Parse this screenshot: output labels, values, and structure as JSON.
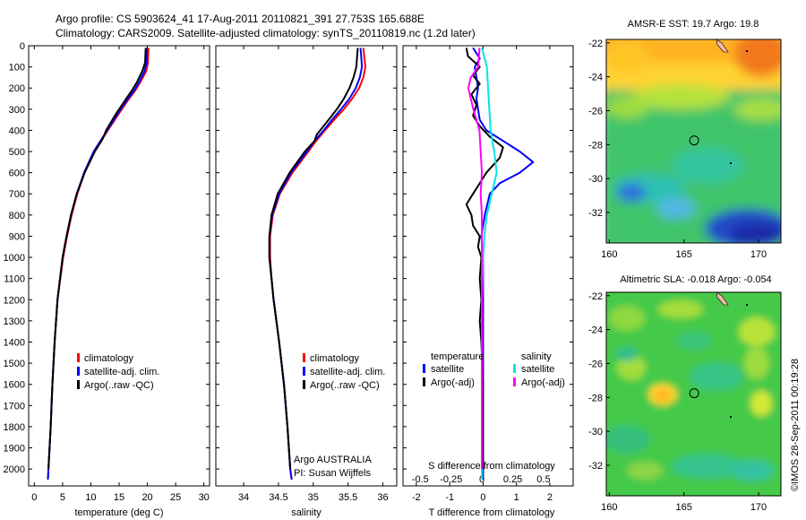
{
  "header": {
    "line1": "Argo profile: CS 5903624_41 17-Aug-2011 20110821_391 27.753S 165.688E",
    "line2": "Climatology: CARS2009. Satellite-adjusted climatology: synTS_20110819.nc (1.2d later)"
  },
  "credit": "©IMOS 28-Sep-2011 00:19:28",
  "colors": {
    "climatology": "#ff0000",
    "satellite": "#0000ff",
    "argo": "#000000",
    "sal_satellite": "#00e5e5",
    "sal_argo": "#ff00ff"
  },
  "chart_data": [
    {
      "type": "line",
      "panel": "temperature",
      "xlabel": "temperature (deg C)",
      "xlim": [
        -1,
        31
      ],
      "xticks": [
        "0",
        "5",
        "10",
        "15",
        "20",
        "25",
        "30"
      ],
      "ylim": [
        0,
        2080
      ],
      "yticks": [
        "0",
        "100",
        "200",
        "300",
        "400",
        "500",
        "600",
        "700",
        "800",
        "900",
        "1000",
        "1100",
        "1200",
        "1300",
        "1400",
        "1500",
        "1600",
        "1700",
        "1800",
        "1900",
        "2000"
      ],
      "legend": [
        "climatology",
        "satellite-adj. clim.",
        "Argo(..raw -QC)"
      ],
      "series": [
        {
          "name": "climatology",
          "color": "climatology",
          "depth": [
            10,
            80,
            120,
            170,
            210,
            260,
            320,
            400,
            500,
            600,
            700,
            800,
            900,
            1000,
            1200,
            1400,
            1600,
            1800,
            2000,
            2050
          ],
          "values": [
            20.2,
            20.1,
            19.8,
            18.8,
            17.9,
            16.5,
            15.0,
            13.0,
            10.6,
            8.9,
            7.6,
            6.6,
            5.8,
            5.1,
            4.1,
            3.6,
            3.2,
            2.9,
            2.5,
            2.4
          ]
        },
        {
          "name": "satellite-adj. clim.",
          "color": "satellite",
          "depth": [
            10,
            80,
            120,
            170,
            210,
            260,
            320,
            400,
            500,
            600,
            700,
            800,
            900,
            1000,
            1200,
            1400,
            1600,
            1800,
            2000,
            2050
          ],
          "values": [
            19.9,
            19.9,
            19.5,
            18.6,
            17.7,
            16.3,
            14.8,
            12.9,
            10.5,
            8.8,
            7.5,
            6.5,
            5.7,
            5.0,
            4.1,
            3.6,
            3.2,
            2.9,
            2.5,
            2.4
          ]
        },
        {
          "name": "Argo(..raw -QC)",
          "color": "argo",
          "depth": [
            10,
            80,
            120,
            170,
            210,
            260,
            320,
            400,
            440,
            500,
            600,
            700,
            800,
            900,
            1000,
            1200,
            1400,
            1600,
            1800,
            2000
          ],
          "values": [
            19.7,
            19.6,
            19.1,
            18.2,
            17.3,
            16.0,
            14.5,
            12.7,
            12.1,
            10.7,
            8.9,
            7.5,
            6.5,
            5.7,
            5.0,
            4.1,
            3.6,
            3.2,
            2.9,
            2.5
          ]
        }
      ]
    },
    {
      "type": "line",
      "panel": "salinity",
      "xlabel": "salinity",
      "xlim": [
        33.6,
        36.2
      ],
      "xticks": [
        "34",
        "34.5",
        "35",
        "35.5",
        "36"
      ],
      "ylim": [
        0,
        2080
      ],
      "legend": [
        "climatology",
        "satellite-adj. clim.",
        "Argo(..raw -QC)"
      ],
      "annotation": [
        "Argo AUSTRALIA",
        "PI: Susan Wijffels"
      ],
      "series": [
        {
          "name": "climatology",
          "color": "climatology",
          "depth": [
            10,
            100,
            150,
            200,
            250,
            300,
            350,
            400,
            450,
            500,
            600,
            700,
            800,
            900,
            1000,
            1100,
            1200,
            1400,
            1600,
            1800,
            2000,
            2050
          ],
          "values": [
            35.72,
            35.75,
            35.72,
            35.66,
            35.56,
            35.44,
            35.3,
            35.17,
            35.04,
            34.93,
            34.7,
            34.52,
            34.42,
            34.38,
            34.38,
            34.4,
            34.43,
            34.51,
            34.58,
            34.63,
            34.67,
            34.69
          ]
        },
        {
          "name": "satellite-adj. clim.",
          "color": "satellite",
          "depth": [
            10,
            100,
            150,
            200,
            250,
            300,
            350,
            400,
            450,
            500,
            600,
            700,
            800,
            900,
            1000,
            1100,
            1200,
            1400,
            1600,
            1800,
            2000,
            2050
          ],
          "values": [
            35.68,
            35.7,
            35.67,
            35.61,
            35.52,
            35.4,
            35.27,
            35.15,
            35.02,
            34.91,
            34.68,
            34.51,
            34.41,
            34.37,
            34.37,
            34.4,
            34.43,
            34.51,
            34.58,
            34.63,
            34.67,
            34.69
          ]
        },
        {
          "name": "Argo(..raw -QC)",
          "color": "argo",
          "depth": [
            10,
            100,
            150,
            200,
            250,
            300,
            350,
            420,
            450,
            500,
            600,
            700,
            800,
            900,
            1000,
            1100,
            1200,
            1400,
            1600,
            1800,
            2000
          ],
          "values": [
            35.64,
            35.62,
            35.58,
            35.52,
            35.44,
            35.34,
            35.22,
            35.05,
            35.02,
            34.88,
            34.66,
            34.49,
            34.4,
            34.37,
            34.37,
            34.4,
            34.43,
            34.51,
            34.58,
            34.63,
            34.67
          ]
        }
      ]
    },
    {
      "type": "line",
      "panel": "difference",
      "xlabel": "T difference from climatology",
      "xlabel_top": "S difference from climatology",
      "xlim": [
        -2.4,
        2.7
      ],
      "xticks": [
        "-2",
        "-1",
        "0",
        "1",
        "2"
      ],
      "xticks_top": [
        "-0.5",
        "-0.25",
        "0",
        "0.25",
        "0.5"
      ],
      "ylim": [
        0,
        2080
      ],
      "legend": {
        "temperature_header": "temperature",
        "salinity_header": "salinity",
        "items": [
          "satellite",
          "Argo(-adj)",
          "satellite",
          "Argo(-adj)"
        ]
      },
      "series": [
        {
          "name": "T satellite",
          "color": "satellite",
          "depth": [
            10,
            60,
            100,
            150,
            200,
            250,
            300,
            350,
            400,
            450,
            500,
            550,
            600,
            650,
            700,
            800,
            900,
            1000,
            1200,
            1400,
            1600,
            1800,
            2000,
            2050
          ],
          "values": [
            -0.3,
            -0.1,
            -0.25,
            -0.2,
            -0.15,
            -0.2,
            -0.15,
            -0.1,
            0.1,
            0.6,
            1.1,
            1.5,
            1.1,
            0.5,
            0.2,
            0.05,
            -0.05,
            0.0,
            0.0,
            0.0,
            0.0,
            0.0,
            0.0,
            0.0
          ]
        },
        {
          "name": "T Argo(-adj)",
          "color": "argo",
          "depth": [
            10,
            50,
            100,
            140,
            180,
            230,
            280,
            330,
            380,
            430,
            480,
            530,
            600,
            650,
            700,
            750,
            800,
            850,
            900,
            950,
            1000,
            1100,
            1200,
            1300,
            1400,
            1600,
            1800,
            2000
          ],
          "values": [
            -0.5,
            -0.45,
            -0.1,
            -0.3,
            -0.1,
            -0.35,
            -0.2,
            -0.3,
            -0.1,
            0.2,
            0.6,
            0.5,
            0.1,
            -0.1,
            -0.3,
            -0.5,
            -0.35,
            -0.3,
            -0.1,
            -0.15,
            -0.05,
            -0.1,
            -0.05,
            -0.1,
            -0.05,
            0.0,
            0.0,
            0.0
          ]
        },
        {
          "name": "S satellite",
          "color": "sal_satellite",
          "depth": [
            10,
            100,
            200,
            300,
            400,
            500,
            600,
            700,
            800,
            900,
            1000,
            1200,
            1400,
            1600,
            1800,
            2000,
            2050
          ],
          "values": [
            0.0,
            0.04,
            0.05,
            0.06,
            0.07,
            0.1,
            0.12,
            0.08,
            0.04,
            0.02,
            0.01,
            0.0,
            0.0,
            0.0,
            0.0,
            0.0,
            0.0
          ]
        },
        {
          "name": "S Argo(-adj)",
          "color": "sal_argo",
          "depth": [
            10,
            100,
            150,
            200,
            250,
            300,
            400,
            500,
            600,
            700,
            800,
            900,
            1000,
            1200,
            1400,
            1600,
            1800,
            2000
          ],
          "values": [
            -0.02,
            -0.03,
            -0.09,
            -0.11,
            -0.09,
            -0.07,
            -0.02,
            -0.01,
            0.0,
            -0.01,
            0.0,
            0.0,
            0.0,
            0.0,
            0.0,
            0.0,
            0.0,
            0.0
          ]
        }
      ]
    },
    {
      "type": "heatmap",
      "panel": "sst_map",
      "title": "AMSR-E SST: 19.7 Argo: 19.8",
      "xticks": [
        "160",
        "165",
        "170"
      ],
      "yticks": [
        "-22",
        "-24",
        "-26",
        "-28",
        "-30",
        "-32"
      ],
      "xlim": [
        159.8,
        171.5
      ],
      "ylim": [
        -33.8,
        -21.8
      ],
      "marker": {
        "lon": 165.688,
        "lat": -27.753
      }
    },
    {
      "type": "heatmap",
      "panel": "sla_map",
      "title": "Altimetric SLA: -0.018 Argo: -0.054",
      "xticks": [
        "160",
        "165",
        "170"
      ],
      "yticks": [
        "-22",
        "-24",
        "-26",
        "-28",
        "-30",
        "-32"
      ],
      "xlim": [
        159.8,
        171.5
      ],
      "ylim": [
        -33.8,
        -21.8
      ],
      "marker": {
        "lon": 165.688,
        "lat": -27.753
      }
    }
  ]
}
